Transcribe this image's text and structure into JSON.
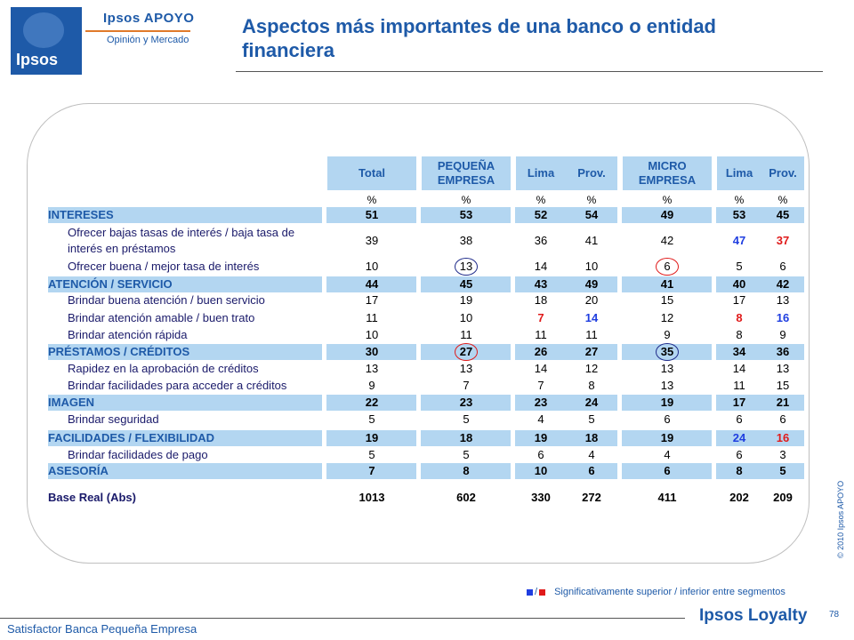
{
  "brand": {
    "logo": "Ipsos",
    "top": "Ipsos APOYO",
    "sub": "Opinión y Mercado"
  },
  "title": "Aspectos más importantes de una banco o entidad financiera",
  "columns": [
    "Total",
    "PEQUEÑA EMPRESA",
    "Lima",
    "Prov.",
    "MICRO EMPRESA",
    "Lima",
    "Prov."
  ],
  "percent_symbol": "%",
  "rows": [
    {
      "type": "cat",
      "label": "INTERESES",
      "values": [
        "51",
        "53",
        "52",
        "54",
        "49",
        "53",
        "45"
      ]
    },
    {
      "type": "sub",
      "label": "Ofrecer bajas tasas de interés / baja tasa de interés en préstamos",
      "values": [
        "39",
        "38",
        "36",
        "41",
        "42",
        "47",
        "37"
      ]
    },
    {
      "type": "sub",
      "label": "Ofrecer buena / mejor tasa de interés",
      "values": [
        "10",
        "13",
        "14",
        "10",
        "6",
        "5",
        "6"
      ]
    },
    {
      "type": "cat",
      "label": "ATENCIÓN / SERVICIO",
      "values": [
        "44",
        "45",
        "43",
        "49",
        "41",
        "40",
        "42"
      ]
    },
    {
      "type": "sub",
      "label": "Brindar buena atención / buen servicio",
      "values": [
        "17",
        "19",
        "18",
        "20",
        "15",
        "17",
        "13"
      ]
    },
    {
      "type": "sub",
      "label": "Brindar atención amable / buen trato",
      "values": [
        "11",
        "10",
        "7",
        "14",
        "12",
        "8",
        "16"
      ]
    },
    {
      "type": "sub",
      "label": "Brindar atención rápida",
      "values": [
        "10",
        "11",
        "11",
        "11",
        "9",
        "8",
        "9"
      ]
    },
    {
      "type": "cat",
      "label": "PRÉSTAMOS / CRÉDITOS",
      "values": [
        "30",
        "27",
        "26",
        "27",
        "35",
        "34",
        "36"
      ]
    },
    {
      "type": "sub",
      "label": "Rapidez en la aprobación de créditos",
      "values": [
        "13",
        "13",
        "14",
        "12",
        "13",
        "14",
        "13"
      ]
    },
    {
      "type": "sub",
      "label": "Brindar facilidades para acceder a créditos",
      "values": [
        "9",
        "7",
        "7",
        "8",
        "13",
        "11",
        "15"
      ]
    },
    {
      "type": "cat",
      "label": "IMAGEN",
      "values": [
        "22",
        "23",
        "23",
        "24",
        "19",
        "17",
        "21"
      ]
    },
    {
      "type": "sub",
      "label": "Brindar seguridad",
      "values": [
        "5",
        "5",
        "4",
        "5",
        "6",
        "6",
        "6"
      ]
    },
    {
      "type": "cat",
      "label": "FACILIDADES / FLEXIBILIDAD",
      "values": [
        "19",
        "18",
        "19",
        "18",
        "19",
        "24",
        "16"
      ]
    },
    {
      "type": "sub",
      "label": "Brindar facilidades de pago",
      "values": [
        "5",
        "5",
        "6",
        "4",
        "4",
        "6",
        "3"
      ]
    },
    {
      "type": "cat",
      "label": "ASESORÍA",
      "values": [
        "7",
        "8",
        "10",
        "6",
        "6",
        "8",
        "5"
      ]
    }
  ],
  "base": {
    "label": "Base Real (Abs)",
    "values": [
      "1013",
      "602",
      "330",
      "272",
      "411",
      "202",
      "209"
    ]
  },
  "highlights": {
    "higher_color": "#1f3ee0",
    "lower_color": "#e01a1a"
  },
  "legend_text": "Significativamente superior / inferior entre segmentos",
  "legend_sep": "/",
  "copyright": "© 2010 Ipsos APOYO",
  "footer": "Satisfactor Banca Pequeña Empresa",
  "footer_brand": "Ipsos Loyalty",
  "page_number": "78"
}
